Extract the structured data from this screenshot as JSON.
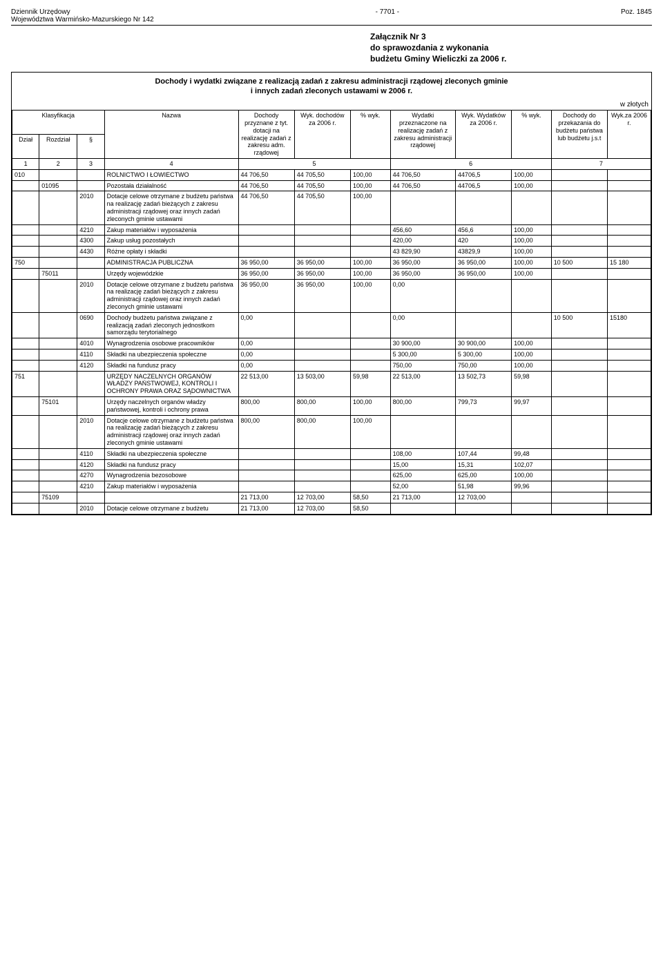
{
  "header": {
    "left1": "Dziennik Urzędowy",
    "left2": "Województwa Warmińsko-Mazurskiego Nr 142",
    "center": "- 7701 -",
    "right": "Poz. 1845"
  },
  "attachment": {
    "l1": "Załącznik Nr 3",
    "l2": "do sprawozdania z wykonania",
    "l3": "budżetu Gminy Wieliczki za 2006 r."
  },
  "title": {
    "l1": "Dochody i wydatki związane z realizacją zadań z zakresu administracji rządowej zleconych gminie",
    "l2": "i innych zadań zleconych ustawami w 2006 r."
  },
  "currency": "w złotych",
  "columns": {
    "c1": "Klasyfikacja",
    "c2": "Nazwa",
    "c3": "Dochody przyznane z tyt. dotacji na realizację zadań z zakresu adm. rządowej",
    "c4": "Wyk. dochodów za 2006 r.",
    "c5": "% wyk.",
    "c6": "Wydatki przeznaczone na realizację zadań z zakresu administracji rządowej",
    "c7": "Wyk. Wydatków za 2006 r.",
    "c8": "% wyk.",
    "c9": "Dochody do przekazania do budżetu państwa lub budżetu j.s.t",
    "c10": "Wyk.za 2006 r."
  },
  "subheads": {
    "dzial": "Dział",
    "rozdz": "Rozdział",
    "par": "§"
  },
  "numrow": {
    "a": "1",
    "b": "2",
    "c": "3",
    "d": "4",
    "e": "5",
    "f": "6",
    "g": "7"
  },
  "rows": [
    {
      "d": "010",
      "r": "",
      "p": "",
      "n": "ROLNICTWO I ŁOWIECTWO",
      "v": [
        "44 706,50",
        "44 705,50",
        "100,00",
        "44 706,50",
        "44706,5",
        "100,00",
        "",
        ""
      ]
    },
    {
      "d": "",
      "r": "01095",
      "p": "",
      "n": "Pozostała działalność",
      "v": [
        "44 706,50",
        "44 705,50",
        "100,00",
        "44 706,50",
        "44706,5",
        "100,00",
        "",
        ""
      ]
    },
    {
      "d": "",
      "r": "",
      "p": "2010",
      "n": "Dotacje celowe otrzymane z budżetu państwa na realizację zadań bieżących z zakresu administracji rządowej oraz innych zadań zleconych gminie ustawami",
      "v": [
        "44 706,50",
        "44 705,50",
        "100,00",
        "",
        "",
        "",
        "",
        ""
      ]
    },
    {
      "d": "",
      "r": "",
      "p": "4210",
      "n": "Zakup materiałów i wyposażenia",
      "v": [
        "",
        "",
        "",
        "456,60",
        "456,6",
        "100,00",
        "",
        ""
      ]
    },
    {
      "d": "",
      "r": "",
      "p": "4300",
      "n": "Zakup usług pozostałych",
      "v": [
        "",
        "",
        "",
        "420,00",
        "420",
        "100,00",
        "",
        ""
      ]
    },
    {
      "d": "",
      "r": "",
      "p": "4430",
      "n": "Różne opłaty i składki",
      "v": [
        "",
        "",
        "",
        "43 829,90",
        "43829,9",
        "100,00",
        "",
        ""
      ]
    },
    {
      "d": "750",
      "r": "",
      "p": "",
      "n": "ADMINISTRACJA PUBLICZNA",
      "v": [
        "36 950,00",
        "36 950,00",
        "100,00",
        "36 950,00",
        "36 950,00",
        "100,00",
        "10 500",
        "15 180"
      ]
    },
    {
      "d": "",
      "r": "75011",
      "p": "",
      "n": "Urzędy wojewódzkie",
      "v": [
        "36 950,00",
        "36 950,00",
        "100,00",
        "36 950,00",
        "36 950,00",
        "100,00",
        "",
        ""
      ]
    },
    {
      "d": "",
      "r": "",
      "p": "2010",
      "n": "Dotacje celowe otrzymane z budżetu państwa na realizację zadań bieżących z zakresu administracji rządowej oraz innych zadań zleconych gminie ustawami",
      "v": [
        "36 950,00",
        "36 950,00",
        "100,00",
        "0,00",
        "",
        "",
        "",
        ""
      ]
    },
    {
      "d": "",
      "r": "",
      "p": "0690",
      "n": "Dochody budżetu państwa związane z realizacją zadań zleconych jednostkom samorządu terytorialnego",
      "v": [
        "0,00",
        "",
        "",
        "0,00",
        "",
        "",
        "10 500",
        "15180"
      ]
    },
    {
      "d": "",
      "r": "",
      "p": "4010",
      "n": "Wynagrodzenia osobowe pracowników",
      "v": [
        "0,00",
        "",
        "",
        "30 900,00",
        "30 900,00",
        "100,00",
        "",
        ""
      ]
    },
    {
      "d": "",
      "r": "",
      "p": "4110",
      "n": "Składki na ubezpieczenia społeczne",
      "v": [
        "0,00",
        "",
        "",
        "5 300,00",
        "5 300,00",
        "100,00",
        "",
        ""
      ]
    },
    {
      "d": "",
      "r": "",
      "p": "4120",
      "n": "Składki na fundusz pracy",
      "v": [
        "0,00",
        "",
        "",
        "750,00",
        "750,00",
        "100,00",
        "",
        ""
      ]
    },
    {
      "d": "751",
      "r": "",
      "p": "",
      "n": "URZĘDY NACZELNYCH ORGANÓW WŁADZY PAŃSTWOWEJ, KONTROLI  I OCHRONY PRAWA ORAZ SĄDOWNICTWA",
      "v": [
        "22 513,00",
        "13 503,00",
        "59,98",
        "22 513,00",
        "13 502,73",
        "59,98",
        "",
        ""
      ]
    },
    {
      "d": "",
      "r": "75101",
      "p": "",
      "n": "Urzędy naczelnych organów władzy państwowej, kontroli i ochrony prawa",
      "v": [
        "800,00",
        "800,00",
        "100,00",
        "800,00",
        "799,73",
        "99,97",
        "",
        ""
      ]
    },
    {
      "d": "",
      "r": "",
      "p": "2010",
      "n": "Dotacje celowe otrzymane z budżetu państwa na realizację zadań bieżących z zakresu administracji rządowej oraz innych zadań zleconych gminie ustawami",
      "v": [
        "800,00",
        "800,00",
        "100,00",
        "",
        "",
        "",
        "",
        ""
      ]
    },
    {
      "d": "",
      "r": "",
      "p": "4110",
      "n": "Składki na ubezpieczenia społeczne",
      "v": [
        "",
        "",
        "",
        "108,00",
        "107,44",
        "99,48",
        "",
        ""
      ]
    },
    {
      "d": "",
      "r": "",
      "p": "4120",
      "n": "Składki na fundusz pracy",
      "v": [
        "",
        "",
        "",
        "15,00",
        "15,31",
        "102,07",
        "",
        ""
      ]
    },
    {
      "d": "",
      "r": "",
      "p": "4270",
      "n": "Wynagrodzenia bezosobowe",
      "v": [
        "",
        "",
        "",
        "625,00",
        "625,00",
        "100,00",
        "",
        ""
      ]
    },
    {
      "d": "",
      "r": "",
      "p": "4210",
      "n": "Zakup materiałów i wyposażenia",
      "v": [
        "",
        "",
        "",
        "52,00",
        "51,98",
        "99,96",
        "",
        ""
      ]
    },
    {
      "d": "",
      "r": "75109",
      "p": "",
      "n": "",
      "v": [
        "21 713,00",
        "12 703,00",
        "58,50",
        "21 713,00",
        "12 703,00",
        "",
        "",
        ""
      ]
    },
    {
      "d": "",
      "r": "",
      "p": "2010",
      "n": "Dotacje celowe otrzymane z budżetu",
      "v": [
        "21 713,00",
        "12 703,00",
        "58,50",
        "",
        "",
        "",
        "",
        ""
      ]
    }
  ]
}
